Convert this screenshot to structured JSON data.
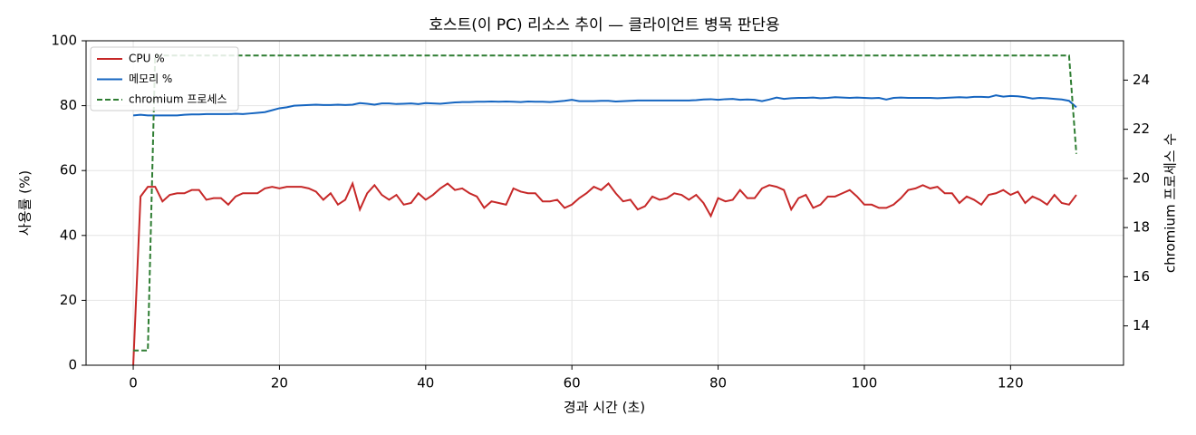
{
  "chart_data": {
    "type": "line",
    "title": "호스트(이 PC) 리소스 추이 — 클라이언트 병목 판단용",
    "x_label": "경과 시간 (초)",
    "y_label": "사용률 (%)",
    "y2_label": "chromium 프로세스 수",
    "x": [
      0,
      1,
      2,
      3,
      4,
      5,
      6,
      7,
      8,
      9,
      10,
      11,
      12,
      13,
      14,
      15,
      16,
      17,
      18,
      19,
      20,
      21,
      22,
      23,
      24,
      25,
      26,
      27,
      28,
      29,
      30,
      31,
      32,
      33,
      34,
      35,
      36,
      37,
      38,
      39,
      40,
      41,
      42,
      43,
      44,
      45,
      46,
      47,
      48,
      49,
      50,
      51,
      52,
      53,
      54,
      55,
      56,
      57,
      58,
      59,
      60,
      61,
      62,
      63,
      64,
      65,
      66,
      67,
      68,
      69,
      70,
      71,
      72,
      73,
      74,
      75,
      76,
      77,
      78,
      79,
      80,
      81,
      82,
      83,
      84,
      85,
      86,
      87,
      88,
      89,
      90,
      91,
      92,
      93,
      94,
      95,
      96,
      97,
      98,
      99,
      100,
      101,
      102,
      103,
      104,
      105,
      106,
      107,
      108,
      109,
      110,
      111,
      112,
      113,
      114,
      115,
      116,
      117,
      118,
      119,
      120,
      121,
      122,
      123,
      124,
      125,
      126,
      127,
      128,
      129
    ],
    "series": [
      {
        "name": "CPU %",
        "color": "#c62828",
        "dash": false,
        "values": [
          0,
          52,
          55,
          55,
          50.5,
          52.5,
          53,
          53,
          54,
          54,
          51,
          51.5,
          51.5,
          49.5,
          52,
          53,
          53,
          53,
          54.5,
          55,
          54.5,
          55,
          55,
          55,
          54.5,
          53.5,
          51,
          53,
          49.5,
          51,
          56,
          48,
          53,
          55.5,
          52.5,
          51,
          52.5,
          49.5,
          50,
          53,
          51,
          52.5,
          54.5,
          56,
          54,
          54.5,
          53,
          52,
          48.5,
          50.5,
          50,
          49.5,
          54.5,
          53.5,
          53,
          53,
          50.5,
          50.5,
          51,
          48.5,
          49.5,
          51.5,
          53,
          55,
          54,
          56,
          53,
          50.5,
          51,
          48,
          49,
          52,
          51,
          51.5,
          53,
          52.5,
          51,
          52.5,
          50,
          46,
          51.5,
          50.5,
          51,
          54,
          51.5,
          51.5,
          54.5,
          55.5,
          55,
          54,
          48,
          51.5,
          52.5,
          48.5,
          49.5,
          52,
          52,
          53,
          54,
          52,
          49.5,
          49.5,
          48.5,
          48.5,
          49.5,
          51.5,
          54,
          54.5,
          55.5,
          54.5,
          55,
          53,
          53,
          50,
          52,
          51,
          49.5,
          52.5,
          53,
          54,
          52.5,
          53.5,
          50,
          52,
          51,
          49.5,
          52.5,
          50,
          49.5,
          52.5
        ]
      },
      {
        "name": "메모리 %",
        "color": "#1565c0",
        "dash": false,
        "values": [
          77,
          77.2,
          77,
          77,
          77,
          77,
          77,
          77.2,
          77.3,
          77.3,
          77.4,
          77.4,
          77.4,
          77.4,
          77.5,
          77.4,
          77.6,
          77.8,
          78,
          78.6,
          79.2,
          79.5,
          80,
          80.1,
          80.2,
          80.3,
          80.2,
          80.2,
          80.3,
          80.2,
          80.3,
          80.8,
          80.6,
          80.3,
          80.7,
          80.7,
          80.5,
          80.6,
          80.7,
          80.5,
          80.8,
          80.7,
          80.6,
          80.8,
          81,
          81.1,
          81.1,
          81.2,
          81.2,
          81.3,
          81.2,
          81.3,
          81.2,
          81.1,
          81.3,
          81.2,
          81.2,
          81.1,
          81.3,
          81.5,
          81.8,
          81.4,
          81.4,
          81.4,
          81.5,
          81.5,
          81.3,
          81.4,
          81.5,
          81.6,
          81.6,
          81.6,
          81.6,
          81.6,
          81.6,
          81.6,
          81.6,
          81.7,
          81.9,
          82,
          81.8,
          82,
          82.1,
          81.8,
          81.9,
          81.8,
          81.4,
          81.9,
          82.5,
          82.1,
          82.3,
          82.4,
          82.4,
          82.5,
          82.3,
          82.4,
          82.6,
          82.5,
          82.4,
          82.5,
          82.4,
          82.3,
          82.4,
          81.9,
          82.4,
          82.5,
          82.4,
          82.4,
          82.4,
          82.4,
          82.3,
          82.4,
          82.5,
          82.6,
          82.5,
          82.7,
          82.7,
          82.6,
          83.2,
          82.8,
          83,
          82.9,
          82.6,
          82.2,
          82.4,
          82.3,
          82.1,
          81.9,
          81.5,
          79.5
        ]
      },
      {
        "name": "chromium 프로세스",
        "color": "#2e7d32",
        "dash": true,
        "axis": "y2",
        "values": [
          13,
          13,
          13,
          25,
          25,
          25,
          25,
          25,
          25,
          25,
          25,
          25,
          25,
          25,
          25,
          25,
          25,
          25,
          25,
          25,
          25,
          25,
          25,
          25,
          25,
          25,
          25,
          25,
          25,
          25,
          25,
          25,
          25,
          25,
          25,
          25,
          25,
          25,
          25,
          25,
          25,
          25,
          25,
          25,
          25,
          25,
          25,
          25,
          25,
          25,
          25,
          25,
          25,
          25,
          25,
          25,
          25,
          25,
          25,
          25,
          25,
          25,
          25,
          25,
          25,
          25,
          25,
          25,
          25,
          25,
          25,
          25,
          25,
          25,
          25,
          25,
          25,
          25,
          25,
          25,
          25,
          25,
          25,
          25,
          25,
          25,
          25,
          25,
          25,
          25,
          25,
          25,
          25,
          25,
          25,
          25,
          25,
          25,
          25,
          25,
          25,
          25,
          25,
          25,
          25,
          25,
          25,
          25,
          25,
          25,
          25,
          25,
          25,
          25,
          25,
          25,
          25,
          25,
          25,
          25,
          25,
          25,
          25,
          25,
          25,
          25,
          25,
          25,
          25,
          21
        ]
      }
    ],
    "xlim": [
      -6.45,
      135.45
    ],
    "xticks": [
      0,
      20,
      40,
      60,
      80,
      100,
      120
    ],
    "ylim": [
      0,
      100
    ],
    "yticks": [
      0,
      20,
      40,
      60,
      80,
      100
    ],
    "y2lim": [
      12.4,
      25.6
    ],
    "y2ticks": [
      14,
      16,
      18,
      20,
      22,
      24
    ],
    "grid": true,
    "legend": "upper left"
  }
}
